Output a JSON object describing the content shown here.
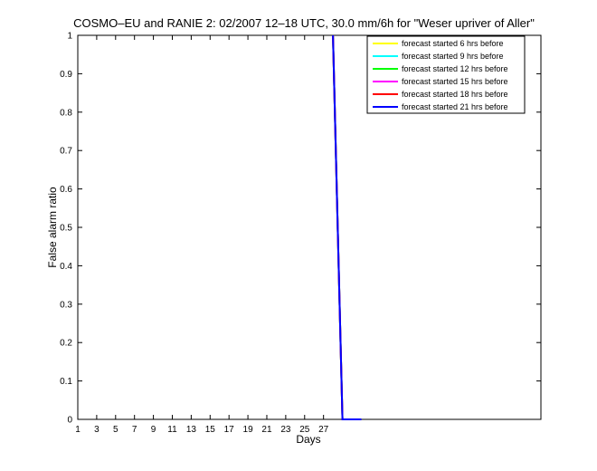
{
  "chart_data": {
    "type": "line",
    "title": "COSMO–EU and RANIE 2: 02/2007 12–18 UTC, 30.0 mm/6h for \"Weser upriver of Aller\"",
    "xlabel": "Days",
    "ylabel": "False alarm ratio",
    "xlim": [
      1,
      50
    ],
    "ylim": [
      0,
      1
    ],
    "xticks": [
      1,
      3,
      5,
      7,
      9,
      11,
      13,
      15,
      17,
      19,
      21,
      23,
      25,
      27
    ],
    "yticks": [
      0,
      0.1,
      0.2,
      0.3,
      0.4,
      0.5,
      0.6,
      0.7,
      0.8,
      0.9,
      1
    ],
    "ytick_labels": [
      "0",
      "0.1",
      "0.2",
      "0.3",
      "0.4",
      "0.5",
      "0.6",
      "0.7",
      "0.8",
      "0.9",
      "1"
    ],
    "legend_position": "top-right",
    "grid": false,
    "series": [
      {
        "name": "forecast started 6 hrs before",
        "color": "#ffff00",
        "x": [
          28,
          29,
          31
        ],
        "y": [
          1,
          0,
          0
        ]
      },
      {
        "name": "forecast started 9 hrs before",
        "color": "#00ffff",
        "x": [
          28,
          29,
          31
        ],
        "y": [
          1,
          0,
          0
        ]
      },
      {
        "name": "forecast started 12 hrs before",
        "color": "#00ff00",
        "x": [
          28,
          29,
          31
        ],
        "y": [
          1,
          0,
          0
        ]
      },
      {
        "name": "forecast started 15 hrs before",
        "color": "#ff00ff",
        "x": [
          28,
          29,
          31
        ],
        "y": [
          1,
          0,
          0
        ]
      },
      {
        "name": "forecast started 18 hrs before",
        "color": "#ff0000",
        "x": [
          28,
          29,
          31
        ],
        "y": [
          1,
          0,
          0
        ]
      },
      {
        "name": "forecast started 21 hrs before",
        "color": "#0000ff",
        "x": [
          28,
          29,
          31
        ],
        "y": [
          1,
          0,
          0
        ]
      }
    ]
  }
}
